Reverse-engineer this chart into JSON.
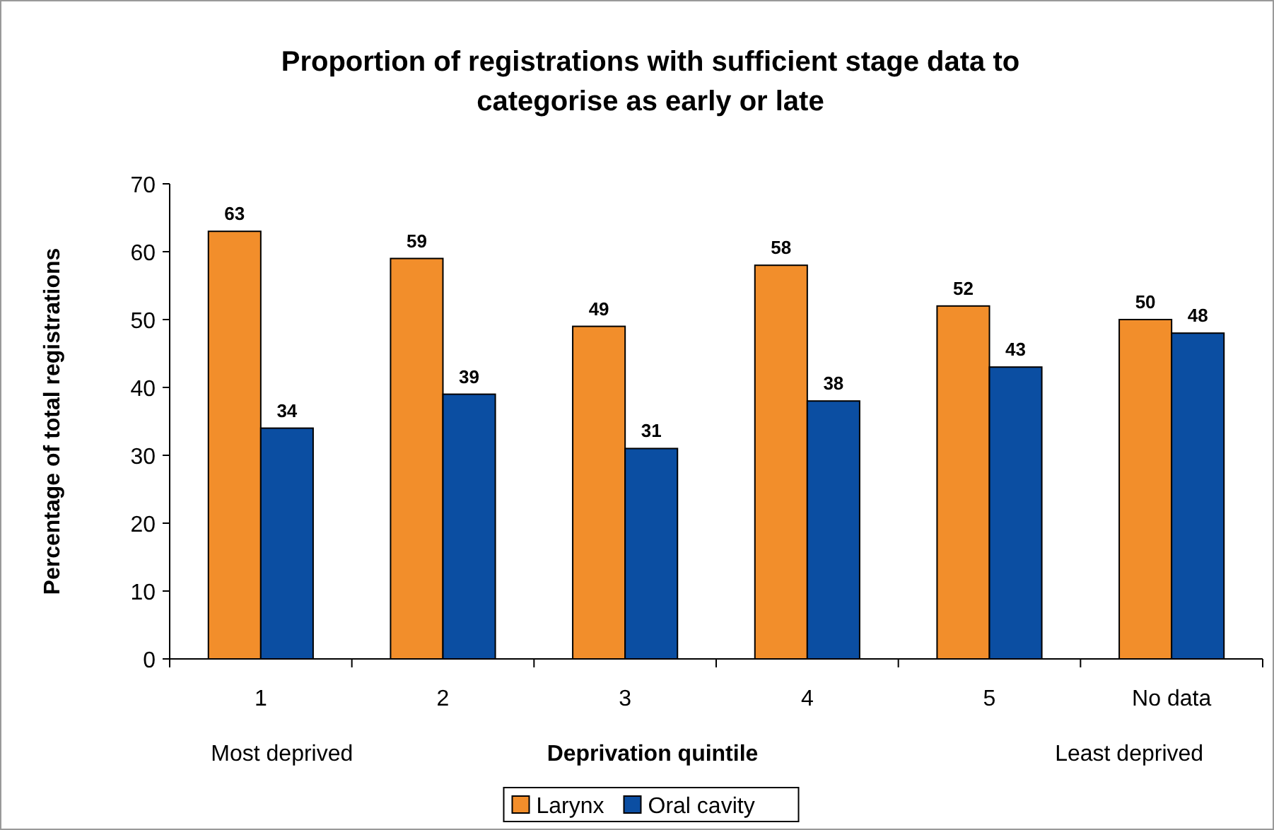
{
  "chart_data": {
    "type": "bar",
    "title": "Proportion of registrations with sufficient stage data to categorise as early or late",
    "xlabel": "Deprivation quintile",
    "ylabel": "Percentage of total registrations",
    "categories": [
      "1",
      "2",
      "3",
      "4",
      "5",
      "No data"
    ],
    "series": [
      {
        "name": "Larynx",
        "color": "#f28e2b",
        "values": [
          63,
          59,
          49,
          58,
          52,
          50
        ]
      },
      {
        "name": "Oral cavity",
        "color": "#0b4ea2",
        "values": [
          34,
          39,
          31,
          38,
          43,
          48
        ]
      }
    ],
    "ylim": [
      0,
      70
    ],
    "yticks": [
      0,
      10,
      20,
      30,
      40,
      50,
      60,
      70
    ],
    "data_labels": true,
    "grid": false,
    "legend": "bottom",
    "annotations": [
      "Most deprived",
      "Least deprived"
    ]
  }
}
